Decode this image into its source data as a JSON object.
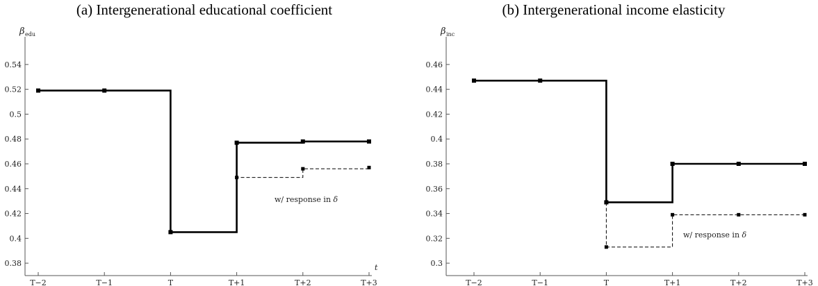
{
  "chart_data": [
    {
      "type": "line",
      "title": "(a) Intergenerational educational coefficient",
      "ylabel": "β",
      "ylabel_sub": "edu",
      "xlabel": "t",
      "categories": [
        "T−2",
        "T−1",
        "T",
        "T+1",
        "T+2",
        "T+3"
      ],
      "yticks": [
        "0.38",
        "0.4",
        "0.42",
        "0.44",
        "0.46",
        "0.48",
        "0.5",
        "0.52",
        "0.54"
      ],
      "ylim": [
        0.37,
        0.55
      ],
      "annotation": "w/ response in δ",
      "series": [
        {
          "style": "solid",
          "values": [
            0.519,
            0.519,
            0.405,
            0.477,
            0.478,
            0.478
          ]
        },
        {
          "style": "dashed",
          "values": [
            null,
            null,
            null,
            0.449,
            0.456,
            0.457
          ]
        }
      ]
    },
    {
      "type": "line",
      "title": "(b) Intergenerational income elasticity",
      "ylabel": "β",
      "ylabel_sub": "inc",
      "xlabel": "",
      "categories": [
        "T−2",
        "T−1",
        "T",
        "T+1",
        "T+2",
        "T+3"
      ],
      "yticks": [
        "0.3",
        "0.32",
        "0.34",
        "0.36",
        "0.38",
        "0.4",
        "0.42",
        "0.44",
        "0.46"
      ],
      "ylim": [
        0.29,
        0.47
      ],
      "annotation": "w/ response in δ",
      "series": [
        {
          "style": "solid",
          "values": [
            0.447,
            0.447,
            0.349,
            0.38,
            0.38,
            0.38
          ]
        },
        {
          "style": "dashed",
          "values": [
            null,
            null,
            0.313,
            0.339,
            0.339,
            0.339
          ]
        }
      ]
    }
  ]
}
